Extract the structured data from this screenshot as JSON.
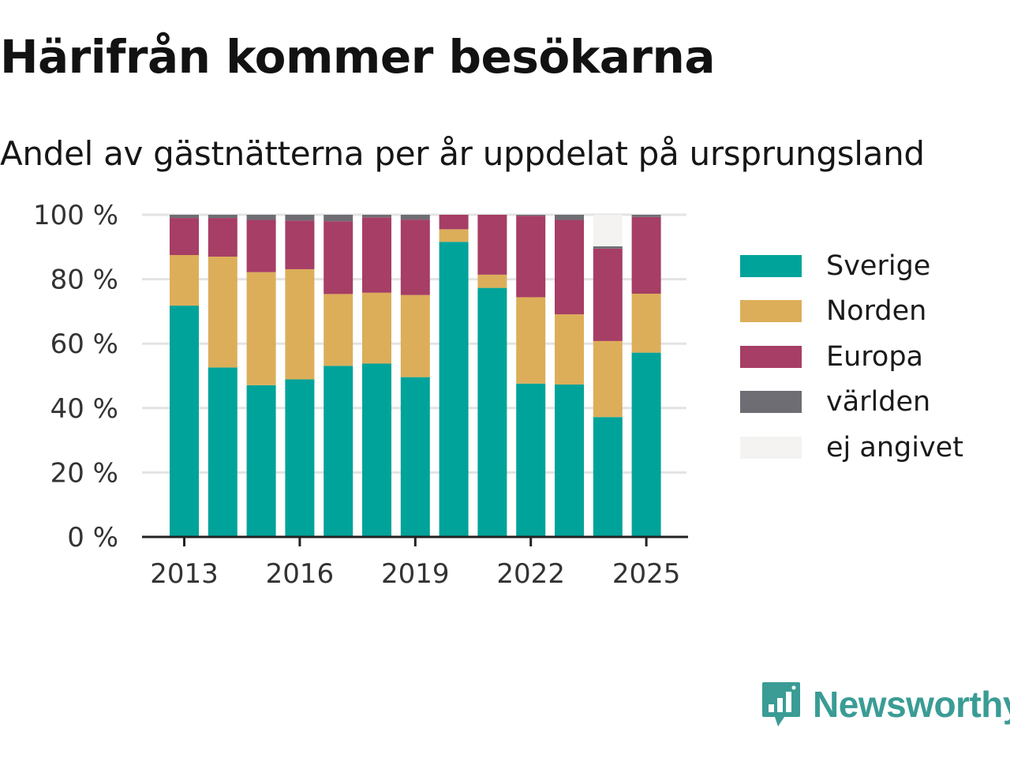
{
  "title": "Härifrån kommer besökarna",
  "subtitle": "Andel av gästnätterna per år uppdelat på ursprungsland",
  "brand": {
    "name": "Newsworthy",
    "color": "#3a9c95",
    "icon": "newsworthy-logo-icon"
  },
  "colors": {
    "Sverige": "#00a39a",
    "Norden": "#dcae5a",
    "Europa": "#a63e65",
    "världen": "#6e6d74",
    "ej angivet": "#f4f3f1"
  },
  "chart_data": {
    "type": "bar",
    "stacked": true,
    "categories": [
      "2013",
      "2014",
      "2015",
      "2016",
      "2017",
      "2018",
      "2019",
      "2020",
      "2021",
      "2022",
      "2023",
      "2024",
      "2025"
    ],
    "x_tick_labels": [
      "2013",
      "2016",
      "2019",
      "2022",
      "2025"
    ],
    "y_tick_labels": [
      "0 %",
      "20 %",
      "40 %",
      "60 %",
      "80 %",
      "100 %"
    ],
    "ylim": [
      0,
      100
    ],
    "yticks": [
      0,
      20,
      40,
      60,
      80,
      100
    ],
    "grid": true,
    "legend_position": "right",
    "series": [
      {
        "name": "Sverige",
        "values": [
          71.8,
          52.6,
          47.1,
          48.9,
          53.1,
          53.8,
          49.6,
          91.6,
          77.3,
          47.6,
          47.3,
          37.2,
          57.2
        ]
      },
      {
        "name": "Norden",
        "values": [
          15.7,
          34.4,
          35.1,
          34.2,
          22.3,
          22.0,
          25.5,
          3.9,
          4.1,
          26.8,
          21.8,
          23.6,
          18.3
        ]
      },
      {
        "name": "Europa",
        "values": [
          11.5,
          12.0,
          16.2,
          15.1,
          22.6,
          23.4,
          23.4,
          4.5,
          18.6,
          25.3,
          29.3,
          28.7,
          23.8
        ]
      },
      {
        "name": "världen",
        "values": [
          1.0,
          1.0,
          1.6,
          1.8,
          2.0,
          0.8,
          1.5,
          0,
          0,
          0.3,
          1.6,
          0.7,
          0.7
        ]
      },
      {
        "name": "ej angivet",
        "values": [
          0,
          0,
          0,
          0,
          0,
          0,
          0,
          0,
          0,
          0,
          0,
          9.8,
          0
        ]
      }
    ]
  }
}
